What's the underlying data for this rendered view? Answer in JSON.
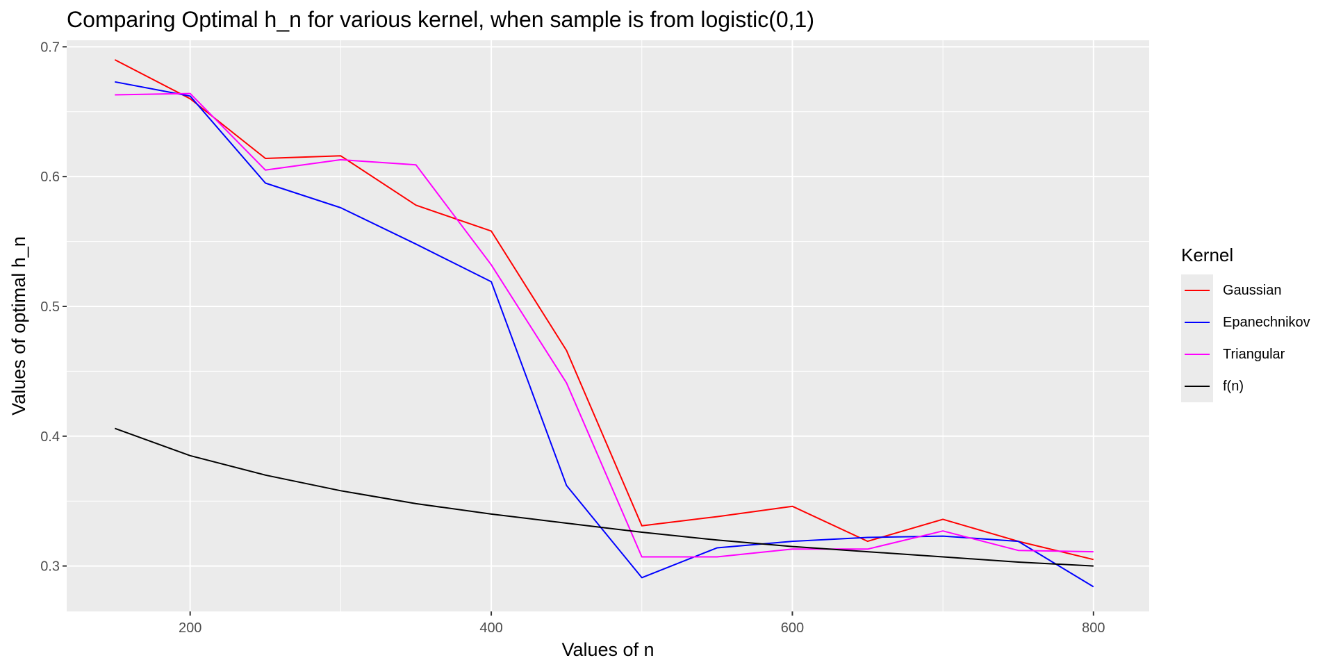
{
  "chart_data": {
    "type": "line",
    "title": "Comparing Optimal h_n for various kernel, when sample is from logistic(0,1)",
    "xlabel": "Values of n",
    "ylabel": "Values of optimal h_n",
    "xlim": [
      118,
      837
    ],
    "ylim": [
      0.265,
      0.705
    ],
    "x_ticks": [
      200,
      400,
      600,
      800
    ],
    "y_ticks": [
      0.3,
      0.4,
      0.5,
      0.6,
      0.7
    ],
    "x_tick_labels": [
      "200",
      "400",
      "600",
      "800"
    ],
    "y_tick_labels": [
      "0.3",
      "0.4",
      "0.5",
      "0.6",
      "0.7"
    ],
    "grid": true,
    "legend_position": "right",
    "legend_title": "Kernel",
    "x": [
      150,
      200,
      250,
      300,
      350,
      400,
      450,
      500,
      550,
      600,
      650,
      700,
      750,
      800
    ],
    "series": [
      {
        "name": "Gaussian",
        "color": "#ff0000",
        "values": [
          0.69,
          0.66,
          0.614,
          0.616,
          0.578,
          0.558,
          0.466,
          0.331,
          0.338,
          0.346,
          0.319,
          0.336,
          0.319,
          0.305
        ]
      },
      {
        "name": "Epanechnikov",
        "color": "#0000ff",
        "values": [
          0.673,
          0.662,
          0.595,
          0.576,
          0.548,
          0.519,
          0.362,
          0.291,
          0.314,
          0.319,
          0.322,
          0.323,
          0.319,
          0.284
        ]
      },
      {
        "name": "Triangular",
        "color": "#ff00ff",
        "values": [
          0.663,
          0.664,
          0.605,
          0.613,
          0.609,
          0.532,
          0.441,
          0.307,
          0.307,
          0.313,
          0.313,
          0.327,
          0.312,
          0.311
        ]
      },
      {
        "name": "f(n)",
        "color": "#000000",
        "values": [
          0.406,
          0.385,
          0.37,
          0.358,
          0.348,
          0.34,
          0.333,
          0.326,
          0.32,
          0.315,
          0.311,
          0.307,
          0.303,
          0.3
        ]
      }
    ]
  }
}
